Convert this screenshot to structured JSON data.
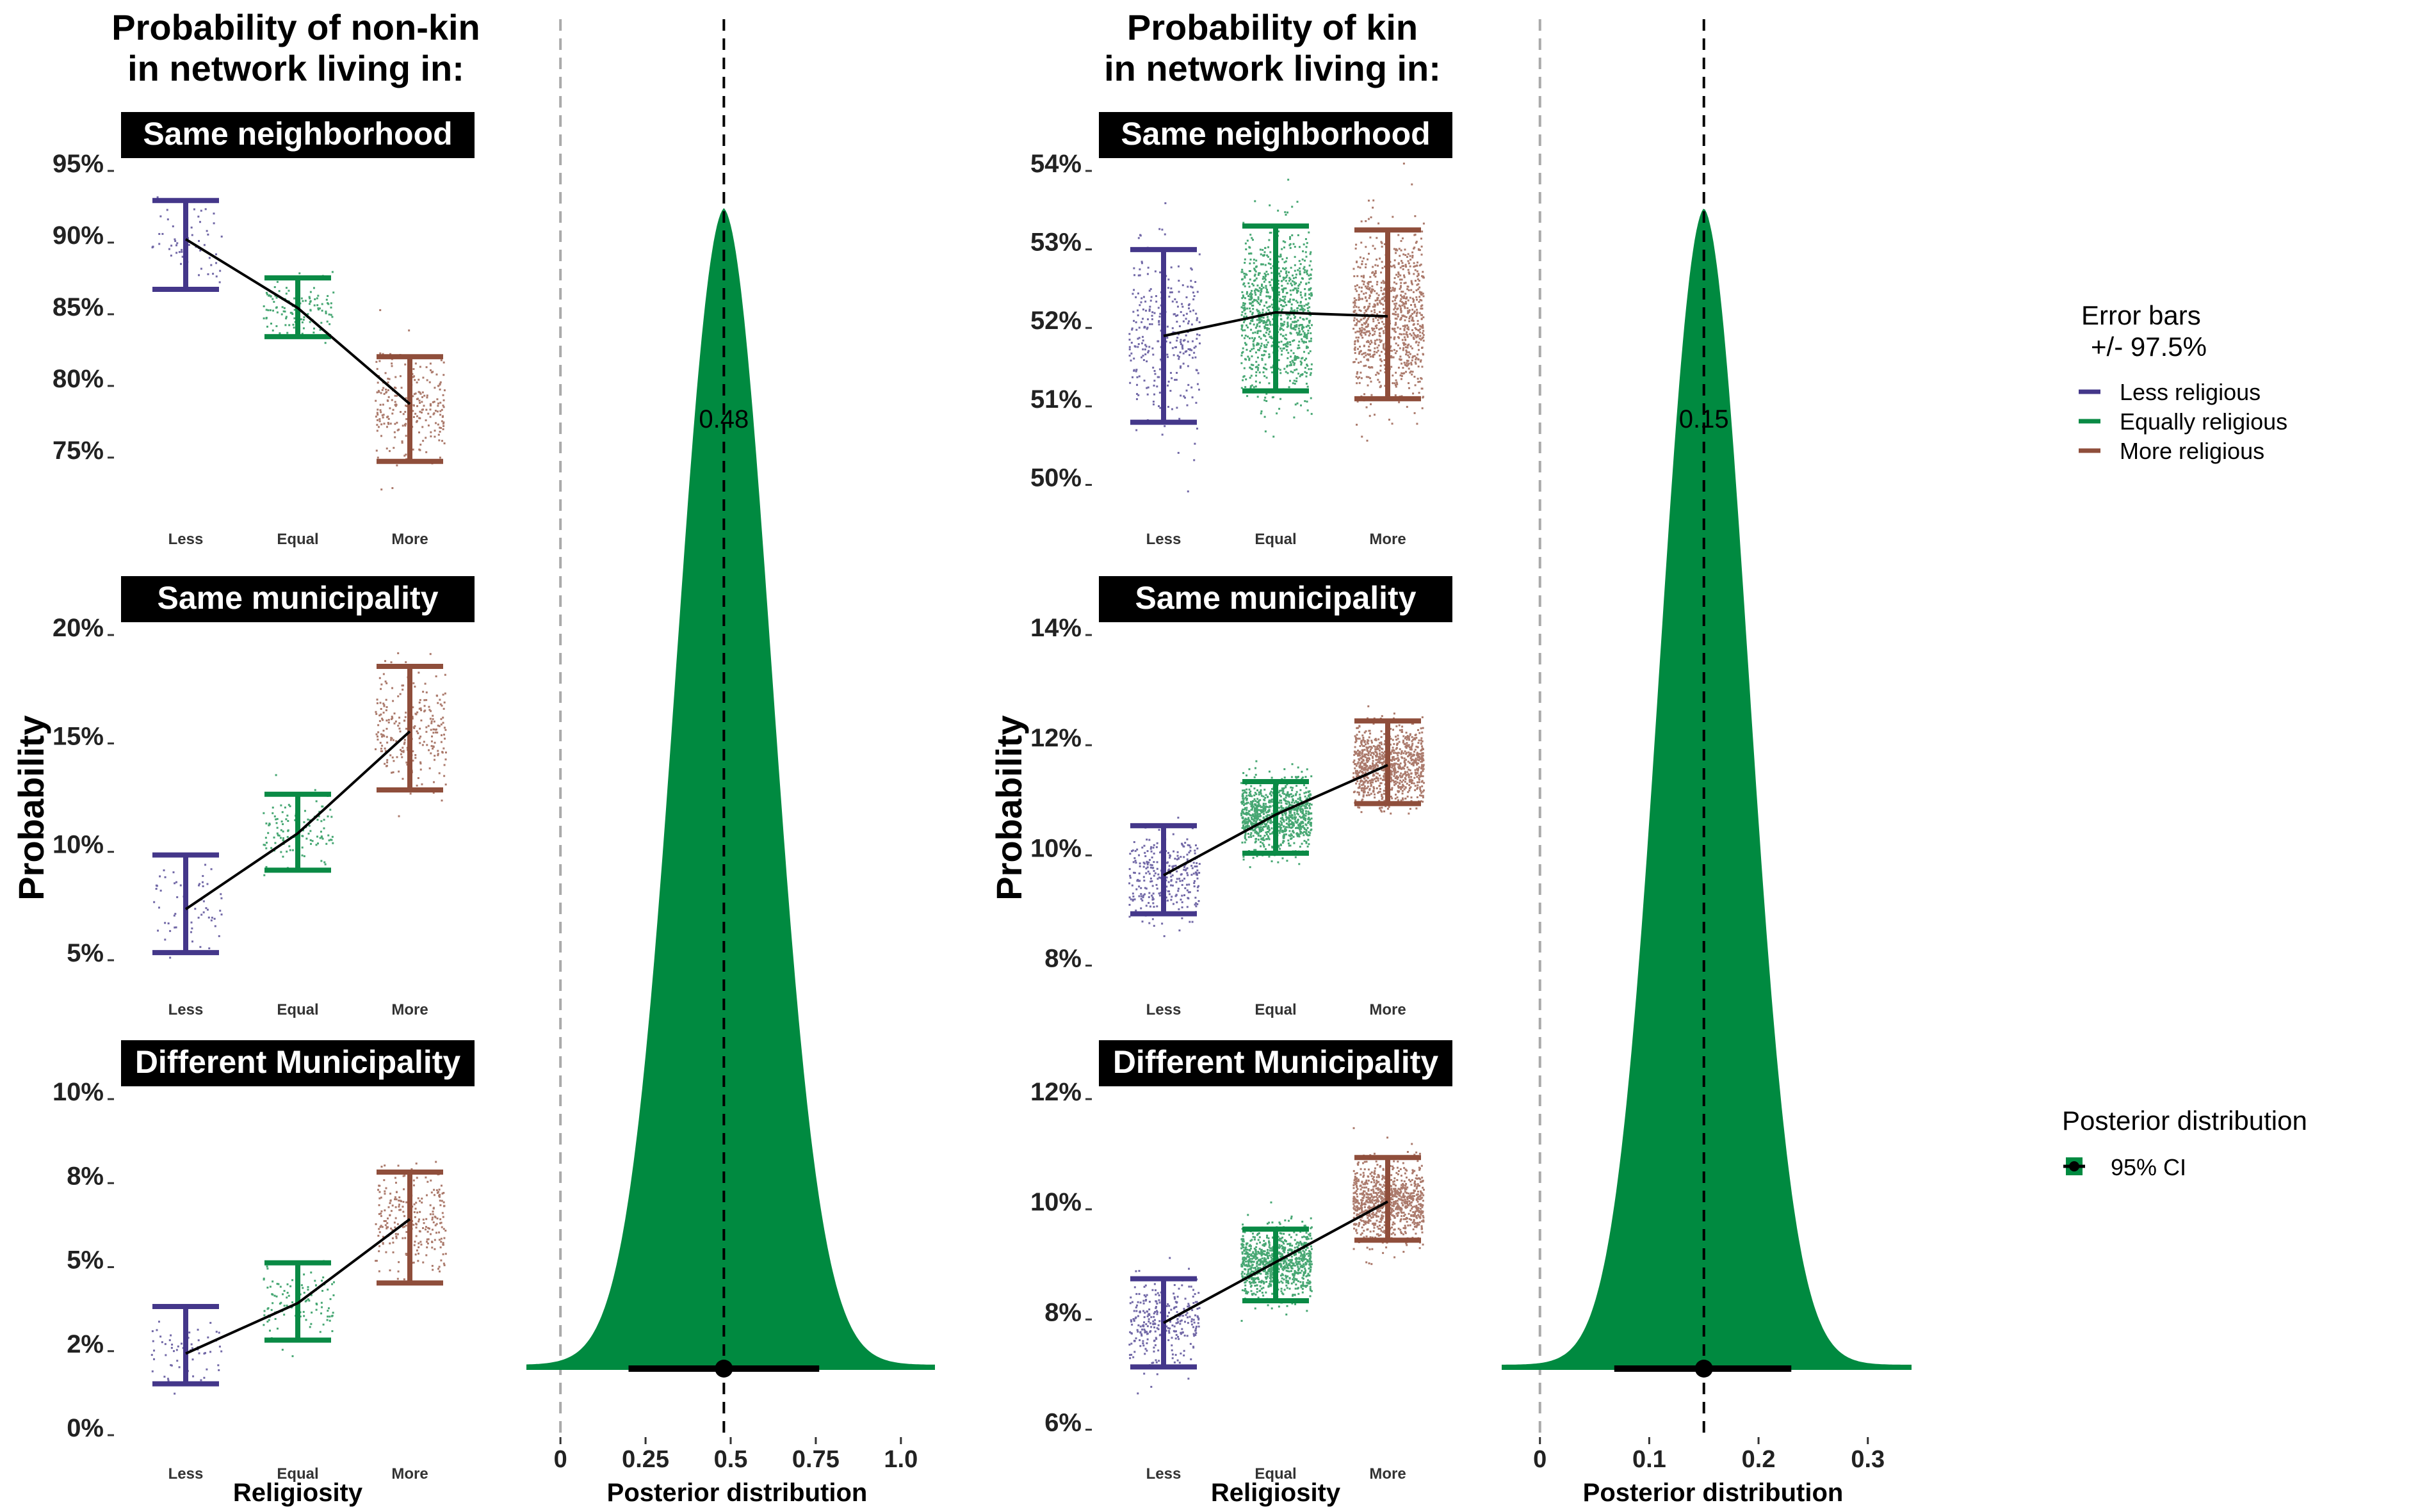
{
  "colors": {
    "less": "#44378a",
    "equal": "#0a8a45",
    "more": "#8f4e3b",
    "posterior_fill": "#008a40",
    "strip_bg": "#000000",
    "strip_text": "#ffffff"
  },
  "legend": {
    "error_title_line1": "Error bars",
    "error_title_line2": "+/- 97.5%",
    "error_items": [
      "Less religious",
      "Equally religious",
      "More religious"
    ],
    "posterior_title": "Posterior distribution",
    "posterior_item": "95% CI"
  },
  "chart_data": [
    {
      "type": "errorbar",
      "panel_group": "non-kin",
      "title_line1": "Probability of non-kin",
      "title_line2": "in network living in:",
      "ylabel": "Probability",
      "xlabel": "Religiosity",
      "categories": [
        "Less",
        "Equal",
        "More"
      ],
      "facets": [
        {
          "strip": "Same neighborhood",
          "ylim": [
            72,
            95
          ],
          "ticks": [
            75,
            80,
            85,
            90,
            95
          ],
          "tick_labels": [
            "75%",
            "80%",
            "85%",
            "90%",
            "95%"
          ],
          "mean": [
            89.7,
            84.9,
            78.2
          ],
          "lower": [
            86.2,
            82.9,
            74.2
          ],
          "upper": [
            92.4,
            87.0,
            81.5
          ]
        },
        {
          "strip": "Same municipality",
          "ylim": [
            4.5,
            20
          ],
          "ticks": [
            5,
            10,
            15,
            20
          ],
          "tick_labels": [
            "5%",
            "10%",
            "15%",
            "20%"
          ],
          "mean": [
            7.0,
            10.5,
            15.2
          ],
          "lower": [
            5.0,
            8.8,
            12.5
          ],
          "upper": [
            9.5,
            12.3,
            18.2
          ]
        },
        {
          "strip": "Different Municipality",
          "ylim": [
            0,
            10
          ],
          "ticks": [
            0,
            2.5,
            5,
            7.5,
            10
          ],
          "tick_labels": [
            "0%",
            "2%",
            "5%",
            "8%",
            "10%"
          ],
          "mean": [
            2.2,
            3.7,
            6.2
          ],
          "lower": [
            1.3,
            2.6,
            4.3
          ],
          "upper": [
            3.6,
            4.9,
            7.6
          ]
        }
      ]
    },
    {
      "type": "area",
      "panel_group": "non-kin",
      "xlabel": "Posterior distribution",
      "xlim": [
        -0.1,
        1.1
      ],
      "ticks": [
        0,
        0.25,
        0.5,
        0.75,
        1.0
      ],
      "tick_labels": [
        "0",
        "0.25",
        "0.5",
        "0.75",
        "1.0"
      ],
      "median": 0.48,
      "median_label": "0.48",
      "ci": [
        0.2,
        0.76
      ],
      "density_sd": 0.145,
      "zero_line": 0
    },
    {
      "type": "errorbar",
      "panel_group": "kin",
      "title_line1": "Probability of kin",
      "title_line2": "in network living in:",
      "ylabel": "Probability",
      "xlabel": "Religiosity",
      "categories": [
        "Less",
        "Equal",
        "More"
      ],
      "facets": [
        {
          "strip": "Same neighborhood",
          "ylim": [
            49.8,
            54
          ],
          "ticks": [
            50,
            51,
            52,
            53,
            54
          ],
          "tick_labels": [
            "50%",
            "51%",
            "52%",
            "53%",
            "54%"
          ],
          "mean": [
            51.8,
            52.1,
            52.05
          ],
          "lower": [
            50.7,
            51.1,
            51.0
          ],
          "upper": [
            52.9,
            53.2,
            53.15
          ]
        },
        {
          "strip": "Same municipality",
          "ylim": [
            7.9,
            14
          ],
          "ticks": [
            8,
            10,
            12,
            14
          ],
          "tick_labels": [
            "8%",
            "10%",
            "12%",
            "14%"
          ],
          "mean": [
            9.5,
            10.6,
            11.5
          ],
          "lower": [
            8.8,
            9.9,
            10.8
          ],
          "upper": [
            10.4,
            11.2,
            12.3
          ]
        },
        {
          "strip": "Different Municipality",
          "ylim": [
            5.9,
            12
          ],
          "ticks": [
            6,
            8,
            10,
            12
          ],
          "tick_labels": [
            "6%",
            "8%",
            "10%",
            "12%"
          ],
          "mean": [
            7.8,
            8.9,
            10.0
          ],
          "lower": [
            7.0,
            8.2,
            9.3
          ],
          "upper": [
            8.6,
            9.5,
            10.8
          ]
        }
      ]
    },
    {
      "type": "area",
      "panel_group": "kin",
      "xlabel": "Posterior distribution",
      "xlim": [
        -0.035,
        0.34
      ],
      "ticks": [
        0,
        0.1,
        0.2,
        0.3
      ],
      "tick_labels": [
        "0",
        "0.1",
        "0.2",
        "0.3"
      ],
      "median": 0.15,
      "median_label": "0.15",
      "ci": [
        0.068,
        0.23
      ],
      "density_sd": 0.042,
      "zero_line": 0
    }
  ]
}
